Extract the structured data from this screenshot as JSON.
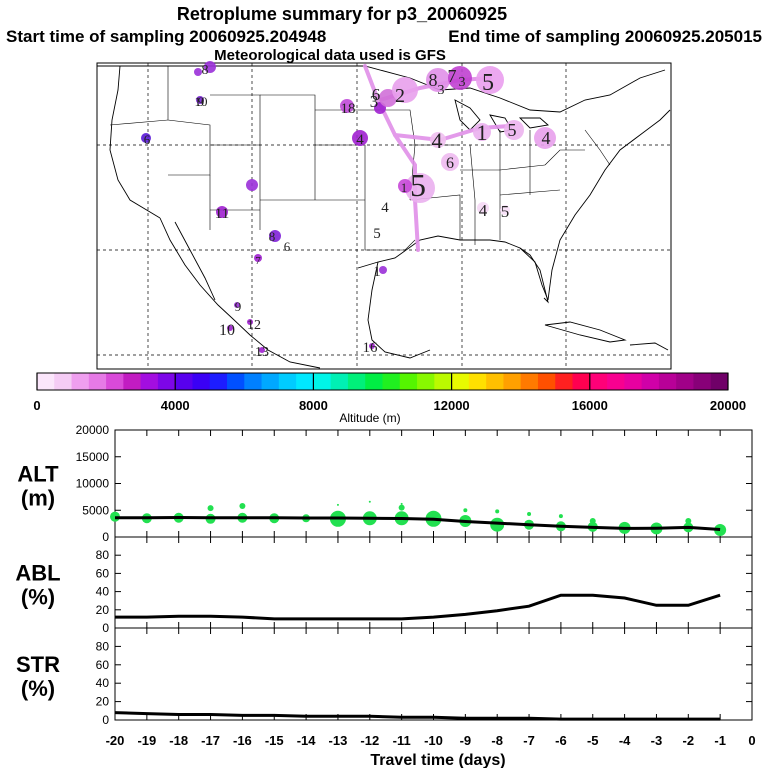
{
  "header": {
    "title": "Retroplume summary for p3_20060925",
    "start_label": "Start time of sampling 20060925.204948",
    "end_label": "End time of sampling 20060925.205015",
    "met_label": "Meteorological data used is GFS"
  },
  "map": {
    "numbers": [
      "8",
      "10",
      "9",
      "6",
      "18",
      "3",
      "6",
      "2",
      "8",
      "3",
      "7",
      "5",
      "3",
      "4",
      "4",
      "1",
      "5",
      "4",
      "6",
      "5",
      "1",
      "4",
      "4",
      "5",
      "11",
      "5",
      "8",
      "6",
      "7",
      "1",
      "9",
      "10",
      "12",
      "13",
      "16"
    ]
  },
  "chart_data": {
    "type": "line",
    "colorbar": {
      "title": "Altitude (m)",
      "range": [
        0,
        20000
      ],
      "tick_labels": [
        "0",
        "4000",
        "8000",
        "12000",
        "16000",
        "20000"
      ],
      "colors": [
        "#fbe6fb",
        "#f5ccf5",
        "#ef9fef",
        "#e67ae6",
        "#d94ad9",
        "#c21cc2",
        "#a30ee0",
        "#7d06e8",
        "#5800ee",
        "#3a00f5",
        "#1d1dff",
        "#0050ff",
        "#0080ff",
        "#00a8ff",
        "#00ccff",
        "#00e8ff",
        "#00f5e8",
        "#00f0b4",
        "#00f07a",
        "#00ee44",
        "#20f020",
        "#55f500",
        "#88f800",
        "#bbfa00",
        "#e8fa00",
        "#ffe000",
        "#ffc000",
        "#ffa000",
        "#ff7a00",
        "#ff5000",
        "#ff2020",
        "#ff0050",
        "#ff0078",
        "#f80090",
        "#e800a0",
        "#d000a8",
        "#b80098",
        "#a00088",
        "#880078",
        "#700068"
      ]
    },
    "x_axis": {
      "label": "Travel time (days)",
      "range": [
        -20,
        0
      ],
      "tick_labels": [
        "-20",
        "-19",
        "-18",
        "-17",
        "-16",
        "-15",
        "-14",
        "-13",
        "-12",
        "-11",
        "-10",
        "-9",
        "-8",
        "-7",
        "-6",
        "-5",
        "-4",
        "-3",
        "-2",
        "-1",
        "0"
      ]
    },
    "panels": [
      {
        "name": "ALT",
        "label_top": "ALT",
        "label_bottom": "(m)",
        "ylim": [
          0,
          20000
        ],
        "tick_labels": [
          "0",
          "5000",
          "10000",
          "15000",
          "20000"
        ],
        "series": [
          {
            "name": "median altitude",
            "x": [
              -20,
              -19,
              -18,
              -17,
              -16,
              -15,
              -14,
              -13,
              -12,
              -11,
              -10,
              -9,
              -8,
              -7,
              -6,
              -5,
              -4,
              -3,
              -2,
              -1
            ],
            "values": [
              3600,
              3600,
              3650,
              3600,
              3600,
              3600,
              3550,
              3550,
              3500,
              3450,
              3300,
              2900,
              2600,
              2300,
              2000,
              1800,
              1600,
              1650,
              1800,
              1400
            ]
          }
        ],
        "scatter": [
          {
            "x": -20,
            "y": 3800,
            "s": 5
          },
          {
            "x": -19,
            "y": 3500,
            "s": 5
          },
          {
            "x": -18,
            "y": 3600,
            "s": 5
          },
          {
            "x": -17,
            "y": 3400,
            "s": 5
          },
          {
            "x": -17,
            "y": 5400,
            "s": 3
          },
          {
            "x": -16,
            "y": 3600,
            "s": 5
          },
          {
            "x": -16,
            "y": 5800,
            "s": 3
          },
          {
            "x": -15,
            "y": 3500,
            "s": 5
          },
          {
            "x": -14,
            "y": 3500,
            "s": 4
          },
          {
            "x": -13,
            "y": 3400,
            "s": 8
          },
          {
            "x": -13,
            "y": 6000,
            "s": 1
          },
          {
            "x": -12,
            "y": 3500,
            "s": 7
          },
          {
            "x": -12,
            "y": 6600,
            "s": 1
          },
          {
            "x": -11,
            "y": 3500,
            "s": 7
          },
          {
            "x": -11,
            "y": 5500,
            "s": 3
          },
          {
            "x": -11,
            "y": 6200,
            "s": 1
          },
          {
            "x": -10,
            "y": 3400,
            "s": 8
          },
          {
            "x": -9,
            "y": 3000,
            "s": 6
          },
          {
            "x": -9,
            "y": 5000,
            "s": 2
          },
          {
            "x": -8,
            "y": 2300,
            "s": 7
          },
          {
            "x": -8,
            "y": 4800,
            "s": 2
          },
          {
            "x": -7,
            "y": 2300,
            "s": 5
          },
          {
            "x": -7,
            "y": 4300,
            "s": 2
          },
          {
            "x": -6,
            "y": 2000,
            "s": 5
          },
          {
            "x": -6,
            "y": 3900,
            "s": 2
          },
          {
            "x": -5,
            "y": 1900,
            "s": 5
          },
          {
            "x": -5,
            "y": 3000,
            "s": 3
          },
          {
            "x": -4,
            "y": 1700,
            "s": 6
          },
          {
            "x": -3,
            "y": 1600,
            "s": 6
          },
          {
            "x": -2,
            "y": 1800,
            "s": 5
          },
          {
            "x": -2,
            "y": 3000,
            "s": 3
          },
          {
            "x": -1,
            "y": 1300,
            "s": 6
          }
        ]
      },
      {
        "name": "ABL",
        "label_top": "ABL",
        "label_bottom": "(%)",
        "ylim": [
          0,
          100
        ],
        "tick_labels": [
          "0",
          "20",
          "40",
          "60",
          "80"
        ],
        "series": [
          {
            "name": "fraction in ABL",
            "x": [
              -20,
              -19,
              -18,
              -17,
              -16,
              -15,
              -14,
              -13,
              -12,
              -11,
              -10,
              -9,
              -8,
              -7,
              -6,
              -5,
              -4,
              -3,
              -2,
              -1
            ],
            "values": [
              12,
              12,
              13,
              13,
              12,
              10,
              10,
              10,
              10,
              10,
              12,
              15,
              19,
              24,
              36,
              36,
              33,
              25,
              25,
              36
            ]
          }
        ]
      },
      {
        "name": "STR",
        "label_top": "STR",
        "label_bottom": "(%)",
        "ylim": [
          0,
          100
        ],
        "tick_labels": [
          "0",
          "20",
          "40",
          "60",
          "80"
        ],
        "series": [
          {
            "name": "fraction in stratosphere",
            "x": [
              -20,
              -19,
              -18,
              -17,
              -16,
              -15,
              -14,
              -13,
              -12,
              -11,
              -10,
              -9,
              -8,
              -7,
              -6,
              -5,
              -4,
              -3,
              -2,
              -1
            ],
            "values": [
              8,
              7,
              6,
              6,
              5,
              5,
              4,
              4,
              4,
              3,
              3,
              2,
              2,
              2,
              1,
              1,
              1,
              1,
              1,
              1
            ]
          }
        ]
      }
    ]
  }
}
